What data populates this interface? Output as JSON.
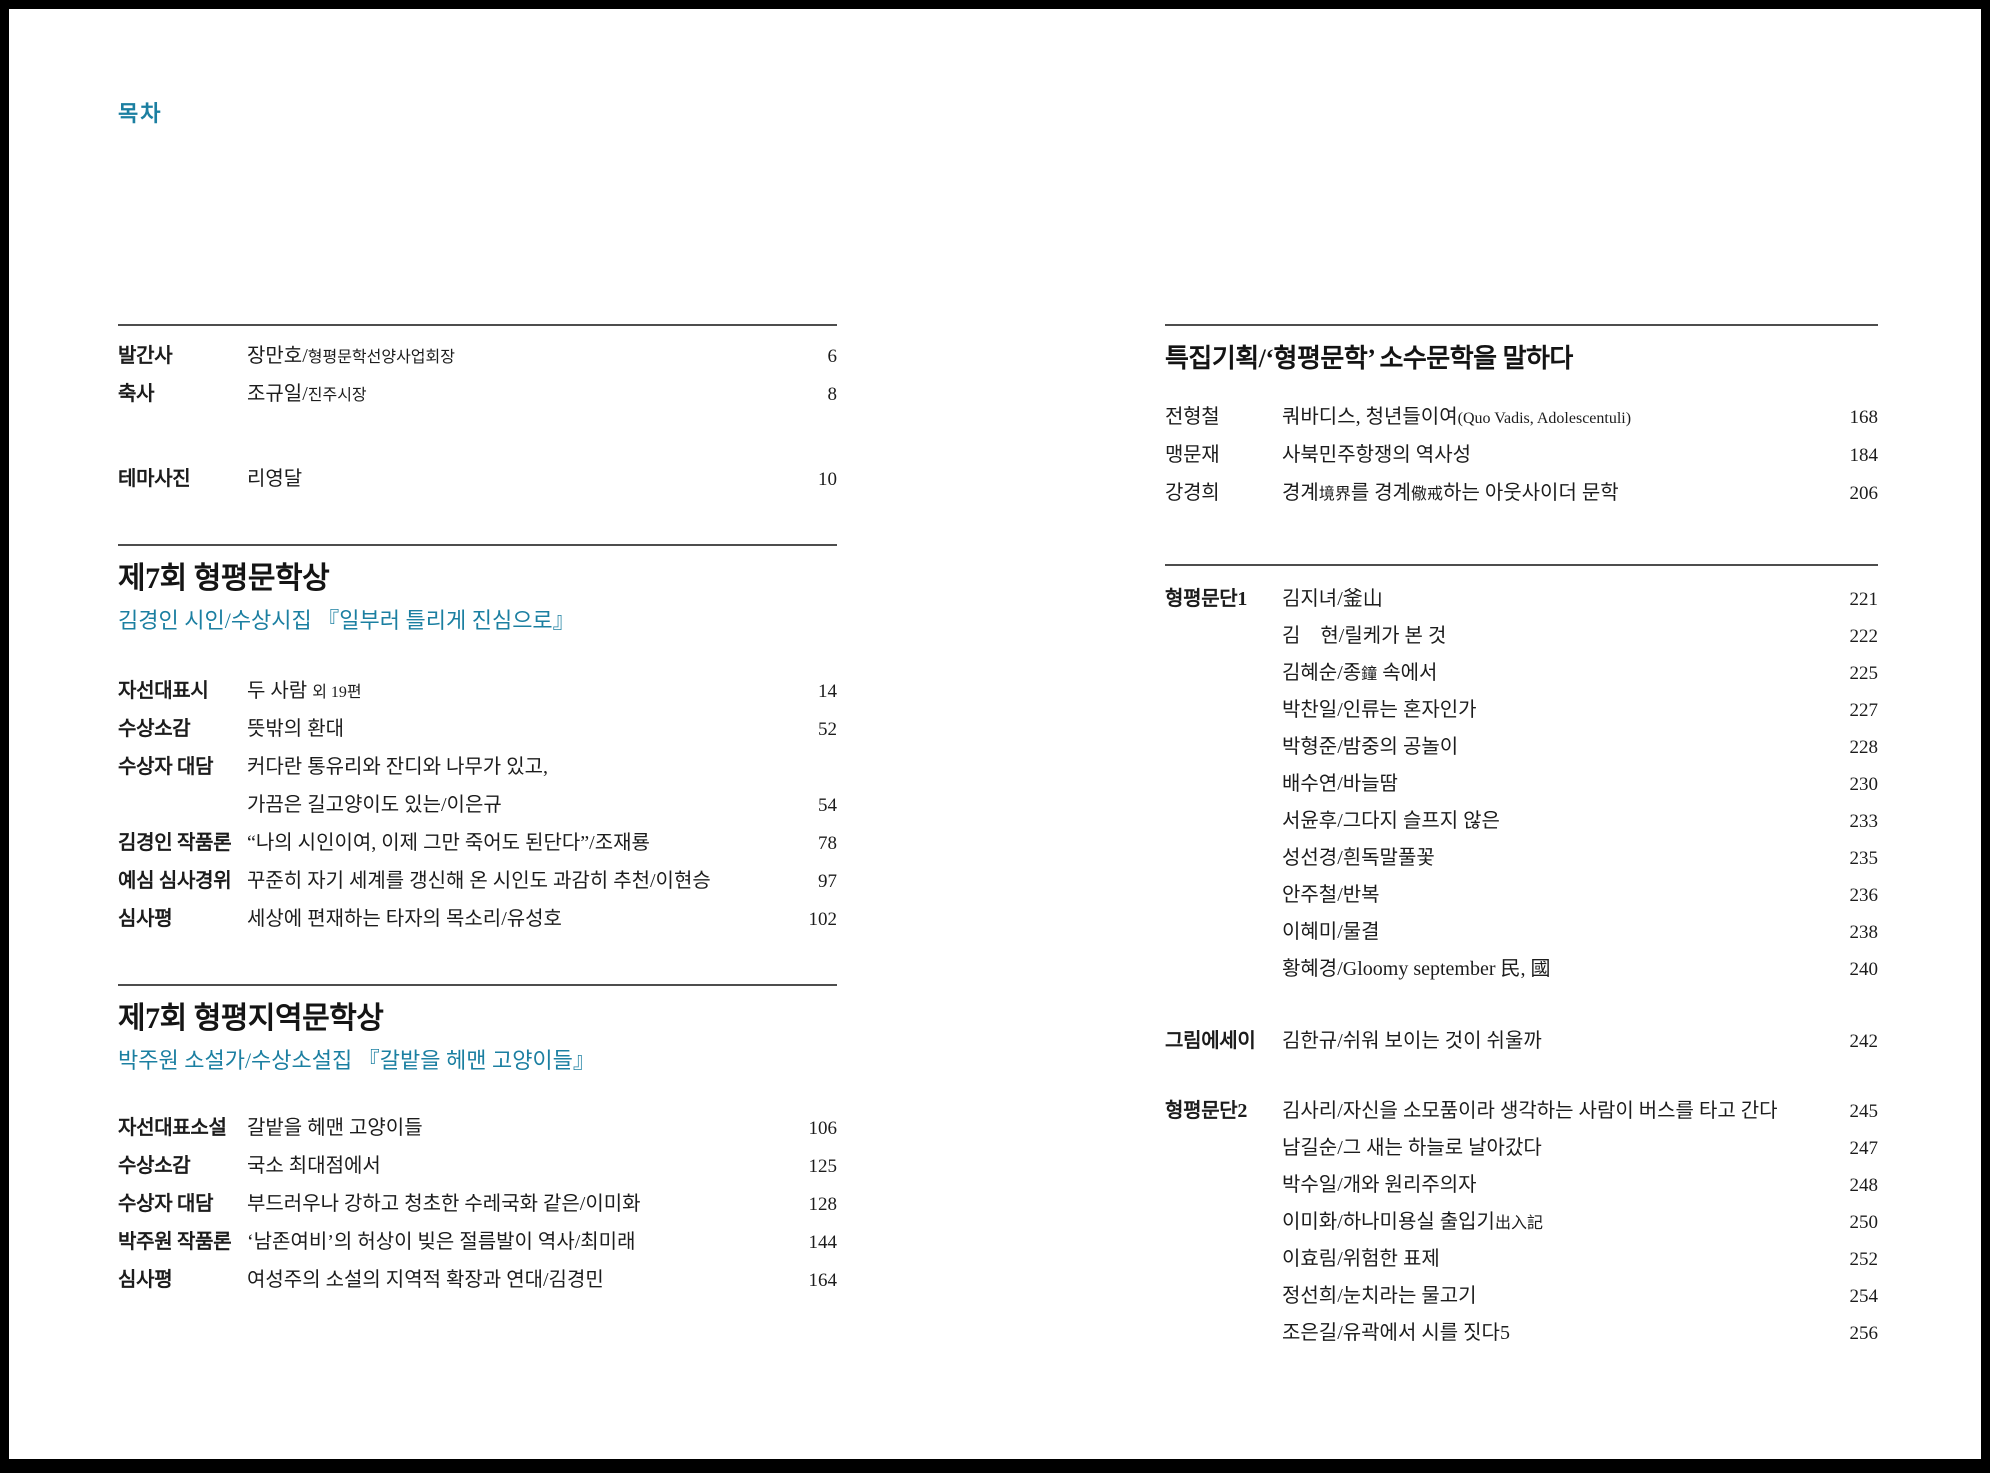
{
  "page": {
    "title": "목차",
    "accent_color": "#1b7fa1",
    "rule_color": "#4d4d4d"
  },
  "left_column": {
    "sections": [
      {
        "id": "front-matter",
        "rule": true,
        "rows": [
          {
            "label": "발간사",
            "segments": [
              {
                "t": "장만호/"
              },
              {
                "t": "형평문학선양사업회장",
                "small": true
              }
            ],
            "page": "6"
          },
          {
            "label": "축사",
            "segments": [
              {
                "t": "조규일/"
              },
              {
                "t": "진주시장",
                "small": true
              }
            ],
            "page": "8"
          },
          {
            "label": "테마사진",
            "gap": true,
            "segments": [
              {
                "t": "리영달"
              }
            ],
            "page": "10"
          }
        ]
      },
      {
        "id": "award-munhak",
        "rule": true,
        "heading": "제7회 형평문학상",
        "subheading": "김경인 시인/수상시집 『일부러 틀리게 진심으로』",
        "rows": [
          {
            "label": "자선대표시",
            "segments": [
              {
                "t": "두 사람 "
              },
              {
                "t": "외 19편",
                "small": true
              }
            ],
            "page": "14"
          },
          {
            "label": "수상소감",
            "segments": [
              {
                "t": "뜻밖의 환대"
              }
            ],
            "page": "52"
          },
          {
            "label": "수상자 대담",
            "segments": [
              {
                "t": "커다란 통유리와 잔디와 나무가 있고,"
              }
            ],
            "page": ""
          },
          {
            "label": "",
            "segments": [
              {
                "t": "가끔은 길고양이도 있는/이은규"
              }
            ],
            "page": "54"
          },
          {
            "label": "김경인 작품론",
            "segments": [
              {
                "t": "“나의 시인이여, 이제 그만 죽어도 된단다”/조재룡"
              }
            ],
            "page": "78"
          },
          {
            "label": "예심 심사경위",
            "segments": [
              {
                "t": "꾸준히 자기 세계를 갱신해 온 시인도 과감히 추천/이현승"
              }
            ],
            "page": "97"
          },
          {
            "label": "심사평",
            "segments": [
              {
                "t": "세상에 편재하는 타자의 목소리/유성호"
              }
            ],
            "page": "102"
          }
        ]
      },
      {
        "id": "award-jiyeok",
        "rule": true,
        "heading": "제7회 형평지역문학상",
        "subheading": "박주원 소설가/수상소설집 『갈밭을 헤맨 고양이들』",
        "rows": [
          {
            "label": "자선대표소설",
            "segments": [
              {
                "t": "갈밭을 헤맨 고양이들"
              }
            ],
            "page": "106"
          },
          {
            "label": "수상소감",
            "segments": [
              {
                "t": "국소 최대점에서"
              }
            ],
            "page": "125"
          },
          {
            "label": "수상자 대담",
            "segments": [
              {
                "t": "부드러우나 강하고 청초한 수레국화 같은/이미화"
              }
            ],
            "page": "128"
          },
          {
            "label": "박주원 작품론",
            "segments": [
              {
                "t": "‘남존여비’의 허상이 빚은 절름발이 역사/최미래"
              }
            ],
            "page": "144"
          },
          {
            "label": "심사평",
            "segments": [
              {
                "t": "여성주의 소설의 지역적 확장과 연대/김경민"
              }
            ],
            "page": "164"
          }
        ]
      }
    ]
  },
  "right_column": {
    "sections": [
      {
        "id": "special",
        "rule": true,
        "heading": "특집기획/‘형평문학’ 소수문학을 말하다",
        "rows": [
          {
            "label": "전형철",
            "label_light": true,
            "segments": [
              {
                "t": "쿼바디스, 청년들이여"
              },
              {
                "t": "(Quo Vadis, Adolescentuli)",
                "small": true
              }
            ],
            "page": "168"
          },
          {
            "label": "맹문재",
            "label_light": true,
            "segments": [
              {
                "t": "사북민주항쟁의 역사성"
              }
            ],
            "page": "184"
          },
          {
            "label": "강경희",
            "label_light": true,
            "segments": [
              {
                "t": "경계"
              },
              {
                "t": "境界",
                "small": true
              },
              {
                "t": "를 경계"
              },
              {
                "t": "儆戒",
                "small": true
              },
              {
                "t": "하는 아웃사이더 문학"
              }
            ],
            "page": "206"
          }
        ]
      },
      {
        "id": "mundan1",
        "rule": true,
        "narrow_rows": true,
        "rows": [
          {
            "label": "형평문단1",
            "segments": [
              {
                "t": "김지녀/釜山"
              }
            ],
            "page": "221"
          },
          {
            "label": "",
            "segments": [
              {
                "t": "김 현/릴케가 본 것"
              }
            ],
            "page": "222"
          },
          {
            "label": "",
            "segments": [
              {
                "t": "김혜순/종"
              },
              {
                "t": "鐘",
                "small": true
              },
              {
                "t": " 속에서"
              }
            ],
            "page": "225"
          },
          {
            "label": "",
            "segments": [
              {
                "t": "박찬일/인류는 혼자인가"
              }
            ],
            "page": "227"
          },
          {
            "label": "",
            "segments": [
              {
                "t": "박형준/밤중의 공놀이"
              }
            ],
            "page": "228"
          },
          {
            "label": "",
            "segments": [
              {
                "t": "배수연/바늘땀"
              }
            ],
            "page": "230"
          },
          {
            "label": "",
            "segments": [
              {
                "t": "서윤후/그다지 슬프지 않은"
              }
            ],
            "page": "233"
          },
          {
            "label": "",
            "segments": [
              {
                "t": "성선경/흰독말풀꽃"
              }
            ],
            "page": "235"
          },
          {
            "label": "",
            "segments": [
              {
                "t": "안주철/반복"
              }
            ],
            "page": "236"
          },
          {
            "label": "",
            "segments": [
              {
                "t": "이혜미/물결"
              }
            ],
            "page": "238"
          },
          {
            "label": "",
            "segments": [
              {
                "t": "황혜경/Gloomy september 民, 國"
              }
            ],
            "page": "240"
          }
        ]
      },
      {
        "id": "essay",
        "rule": false,
        "rows": [
          {
            "label": "그림에세이",
            "segments": [
              {
                "t": "김한규/쉬워 보이는 것이 쉬울까"
              }
            ],
            "page": "242"
          }
        ]
      },
      {
        "id": "mundan2",
        "rule": false,
        "narrow_rows": true,
        "rows": [
          {
            "label": "형평문단2",
            "segments": [
              {
                "t": "김사리/자신을 소모품이라 생각하는 사람이 버스를 타고 간다"
              }
            ],
            "page": "245"
          },
          {
            "label": "",
            "segments": [
              {
                "t": "남길순/그 새는 하늘로 날아갔다"
              }
            ],
            "page": "247"
          },
          {
            "label": "",
            "segments": [
              {
                "t": "박수일/개와 원리주의자"
              }
            ],
            "page": "248"
          },
          {
            "label": "",
            "segments": [
              {
                "t": "이미화/하나미용실 출입기"
              },
              {
                "t": "出入記",
                "small": true
              }
            ],
            "page": "250"
          },
          {
            "label": "",
            "segments": [
              {
                "t": "이효림/위험한 표제"
              }
            ],
            "page": "252"
          },
          {
            "label": "",
            "segments": [
              {
                "t": "정선희/눈치라는 물고기"
              }
            ],
            "page": "254"
          },
          {
            "label": "",
            "segments": [
              {
                "t": "조은길/유곽에서 시를 짓다5"
              }
            ],
            "page": "256"
          }
        ]
      }
    ]
  }
}
